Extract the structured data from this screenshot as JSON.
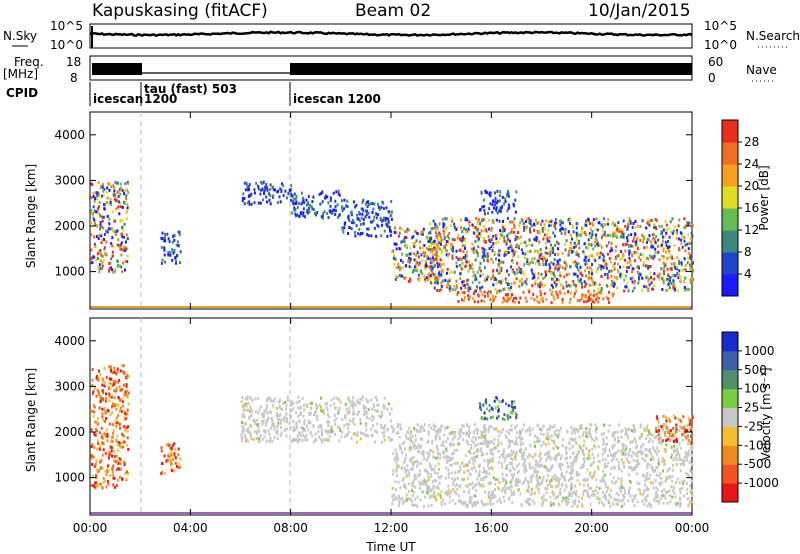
{
  "header": {
    "station": "Kapuskasing (fitACF)",
    "beam": "Beam 02",
    "date": "10/Jan/2015"
  },
  "panels": {
    "nsky_label": "N.Sky",
    "nsearch_label": "N.Search",
    "nsky_ticks": [
      "10^5",
      "10^0"
    ],
    "nsearch_ticks": [
      "10^5",
      "10^0"
    ],
    "freq_label_1": "Freq.",
    "freq_label_2": "[MHz]",
    "freq_ticks": [
      "18",
      "8"
    ],
    "nave_label": "Nave",
    "nave_ticks": [
      "60",
      "0"
    ],
    "cpid_label": "CPID",
    "cpid_segments": [
      {
        "label": "icescan",
        "sublabel": "1200",
        "start_h": 0,
        "end_h": 2
      },
      {
        "label": "tau (fast) 503",
        "sublabel": "",
        "start_h": 2,
        "end_h": 8
      },
      {
        "label": "icescan 1200",
        "sublabel": "",
        "start_h": 8,
        "end_h": 24
      }
    ]
  },
  "axes": {
    "ylabel": "Slant Range [km]",
    "xlabel": "Time UT",
    "y_ticks": [
      "1000",
      "2000",
      "3000",
      "4000"
    ],
    "x_ticks": [
      "00:00",
      "04:00",
      "08:00",
      "12:00",
      "16:00",
      "20:00",
      "00:00"
    ]
  },
  "colorbars": {
    "power": {
      "label": "Power [dB]",
      "ticks": [
        "4",
        "8",
        "12",
        "16",
        "20",
        "24",
        "28"
      ],
      "colors": [
        "#1a1aff",
        "#2244cc",
        "#3d8a7a",
        "#66bb55",
        "#dddd22",
        "#f5a020",
        "#f07020",
        "#e83020"
      ]
    },
    "velocity": {
      "label": "Velocity [m s⁻¹]",
      "ticks": [
        "1000",
        "500",
        "100",
        "25",
        "-25",
        "-100",
        "-500",
        "-1000"
      ],
      "colors": [
        "#1a2ad0",
        "#3e60a8",
        "#4f8f6a",
        "#7acc44",
        "#c8c8c8",
        "#f0c030",
        "#f08a20",
        "#ee5520",
        "#e81818"
      ]
    }
  },
  "chart_data": {
    "type": "heatmap",
    "x_range_h": [
      0,
      24
    ],
    "y_range_km": [
      180,
      4500
    ],
    "grid": false,
    "power_regions": [
      {
        "t0": 0.0,
        "t1": 1.5,
        "r0": 1000,
        "r1": 3000,
        "level": "mixed"
      },
      {
        "t0": 2.8,
        "t1": 3.6,
        "r0": 1200,
        "r1": 1900,
        "level": "low"
      },
      {
        "t0": 6.0,
        "t1": 8.0,
        "r0": 2500,
        "r1": 3000,
        "level": "low"
      },
      {
        "t0": 8.0,
        "t1": 10.0,
        "r0": 2200,
        "r1": 2800,
        "level": "low"
      },
      {
        "t0": 10.0,
        "t1": 12.0,
        "r0": 1800,
        "r1": 2600,
        "level": "low"
      },
      {
        "t0": 12.0,
        "t1": 14.0,
        "r0": 800,
        "r1": 2000,
        "level": "mixed"
      },
      {
        "t0": 13.5,
        "t1": 24.0,
        "r0": 600,
        "r1": 2200,
        "level": "mixed"
      },
      {
        "t0": 14.5,
        "t1": 21.0,
        "r0": 350,
        "r1": 600,
        "level": "high"
      },
      {
        "t0": 15.5,
        "t1": 17.0,
        "r0": 2300,
        "r1": 2800,
        "level": "low"
      }
    ],
    "velocity_regions": [
      {
        "t0": 0.0,
        "t1": 1.5,
        "r0": 800,
        "r1": 3500,
        "sign": "negative"
      },
      {
        "t0": 2.8,
        "t1": 3.6,
        "r0": 1100,
        "r1": 1800,
        "sign": "negative"
      },
      {
        "t0": 6.0,
        "t1": 12.0,
        "r0": 1800,
        "r1": 2800,
        "sign": "near-zero"
      },
      {
        "t0": 12.0,
        "t1": 24.0,
        "r0": 400,
        "r1": 2200,
        "sign": "near-zero"
      },
      {
        "t0": 15.5,
        "t1": 17.0,
        "r0": 2300,
        "r1": 2800,
        "sign": "positive"
      },
      {
        "t0": 22.5,
        "t1": 24.0,
        "r0": 1800,
        "r1": 2400,
        "sign": "negative"
      }
    ]
  }
}
